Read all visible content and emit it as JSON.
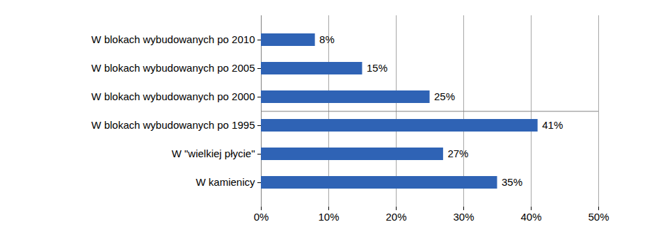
{
  "chart_data": {
    "type": "bar",
    "orientation": "horizontal",
    "categories": [
      "W blokach wybudowanych po 2010",
      "W blokach wybudowanych po 2005",
      "W blokach wybudowanych po 2000",
      "W blokach wybudowanych po 1995",
      "W \"wielkiej płycie\"",
      "W kamienicy"
    ],
    "values": [
      8,
      15,
      25,
      41,
      27,
      35
    ],
    "value_labels": [
      "8%",
      "15%",
      "25%",
      "41%",
      "27%",
      "35%"
    ],
    "data_labels": true,
    "color": "#2f63b5",
    "xlim": [
      0,
      50
    ],
    "xticks": [
      {
        "value": 0,
        "label": "0%"
      },
      {
        "value": 10,
        "label": "10%"
      },
      {
        "value": 20,
        "label": "20%"
      },
      {
        "value": 30,
        "label": "30%"
      },
      {
        "value": 40,
        "label": "40%"
      },
      {
        "value": 50,
        "label": "50%"
      }
    ],
    "grid": true
  }
}
